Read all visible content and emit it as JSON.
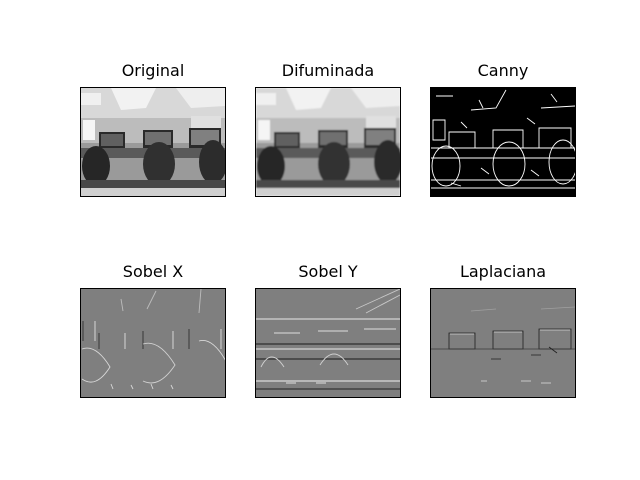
{
  "figure": {
    "background": "#ffffff",
    "panels": [
      {
        "id": "original",
        "title": "Original",
        "kind": "photo"
      },
      {
        "id": "blurred",
        "title": "Difuminada",
        "kind": "photo-blur"
      },
      {
        "id": "canny",
        "title": "Canny",
        "kind": "edges"
      },
      {
        "id": "sobel-x",
        "title": "Sobel X",
        "kind": "gradient-x"
      },
      {
        "id": "sobel-y",
        "title": "Sobel Y",
        "kind": "gradient-y"
      },
      {
        "id": "laplacian",
        "title": "Laplaciana",
        "kind": "laplacian"
      }
    ]
  }
}
